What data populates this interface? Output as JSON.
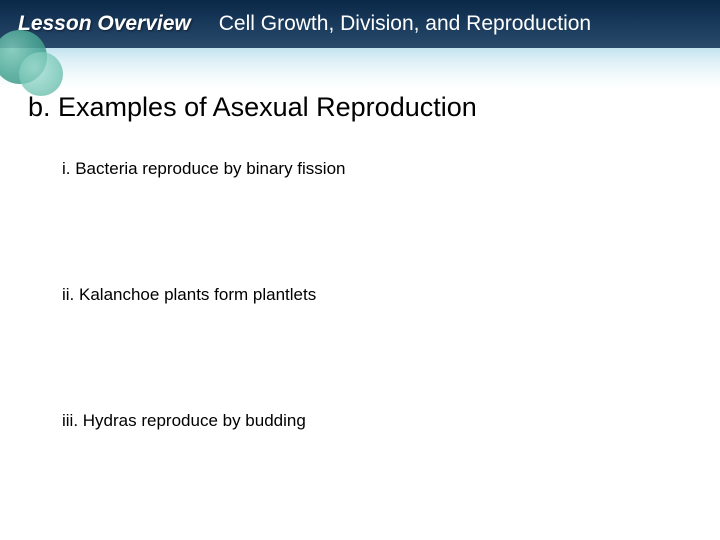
{
  "header": {
    "overview_label": "Lesson Overview",
    "title": "Cell Growth, Division, and Reproduction"
  },
  "content": {
    "section_heading": "b. Examples of Asexual Reproduction",
    "items": [
      {
        "label": "i.  Bacteria reproduce by binary fission"
      },
      {
        "label": "ii.  Kalanchoe plants form plantlets"
      },
      {
        "label": "iii.  Hydras reproduce by budding"
      }
    ]
  },
  "styles": {
    "header_bg_dark": "#0a2847",
    "header_bg_mid": "#1a3a5c",
    "header_text_color": "#ffffff",
    "band_color": "#b4dceb",
    "circle_color1": "#4ba896",
    "circle_color2": "#6fc4b2",
    "body_text_color": "#000000",
    "heading_fontsize": 27,
    "item_fontsize": 17
  }
}
